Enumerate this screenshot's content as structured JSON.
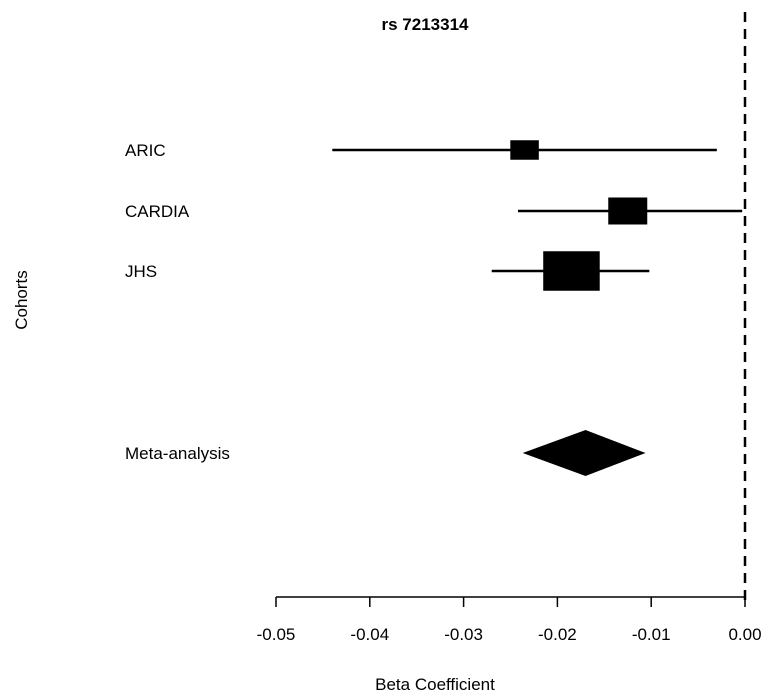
{
  "chart_data": {
    "type": "forest",
    "title": "rs 7213314",
    "xlabel": "Beta Coefficient",
    "ylabel": "Cohorts",
    "xlim": [
      -0.05,
      0.0
    ],
    "xticks": [
      -0.05,
      -0.04,
      -0.03,
      -0.02,
      -0.01,
      0.0
    ],
    "xtick_labels": [
      "-0.05",
      "-0.04",
      "-0.03",
      "-0.02",
      "-0.01",
      "0.00"
    ],
    "reference_line": 0.0,
    "studies": [
      {
        "name": "ARIC",
        "estimate": -0.0235,
        "ci_low": -0.044,
        "ci_high": -0.003,
        "weight": 0.15
      },
      {
        "name": "CARDIA",
        "estimate": -0.0125,
        "ci_low": -0.0242,
        "ci_high": -0.0003,
        "weight": 0.3
      },
      {
        "name": "JHS",
        "estimate": -0.0185,
        "ci_low": -0.027,
        "ci_high": -0.0102,
        "weight": 0.55
      }
    ],
    "meta": {
      "name": "Meta-analysis",
      "estimate": -0.017,
      "ci_low": -0.0237,
      "ci_high": -0.0106
    }
  }
}
